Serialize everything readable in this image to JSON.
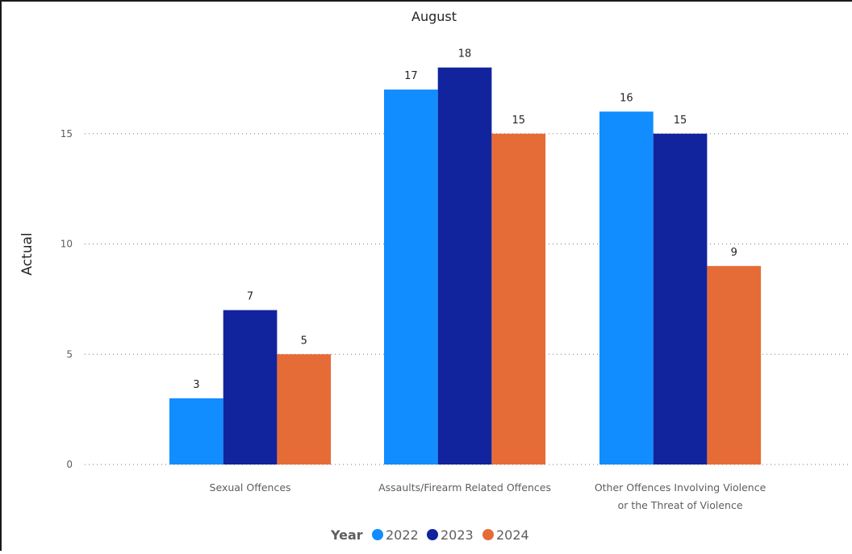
{
  "chart_data": {
    "type": "bar",
    "title": "August",
    "xlabel": "",
    "ylabel": "Actual",
    "categories": [
      [
        "Sexual Offences"
      ],
      [
        "Assaults/Firearm Related Offences"
      ],
      [
        "Other Offences Involving Violence",
        "or the Threat of Violence"
      ]
    ],
    "series": [
      {
        "name": "2022",
        "color": "#118dff",
        "values": [
          3,
          17,
          16
        ]
      },
      {
        "name": "2023",
        "color": "#12239e",
        "values": [
          7,
          18,
          15
        ]
      },
      {
        "name": "2024",
        "color": "#e66c37",
        "values": [
          5,
          15,
          9
        ]
      }
    ],
    "ylim": [
      0,
      18
    ],
    "yticks": [
      0,
      5,
      10,
      15
    ],
    "grid": true,
    "data_labels": true,
    "legend": {
      "title": "Year",
      "position": "bottom-center"
    }
  }
}
